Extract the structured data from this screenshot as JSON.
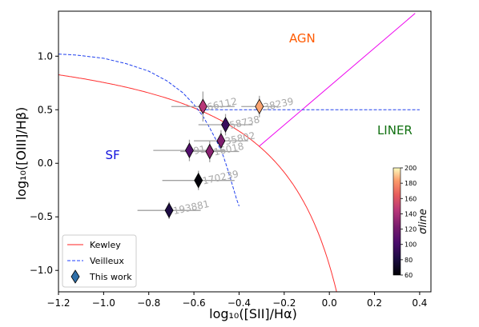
{
  "chart_data": {
    "type": "scatter",
    "xlabel": "log₁₀([SII]/Hα)",
    "ylabel": "log₁₀([OIII]/Hβ)",
    "xlim": [
      -1.2,
      0.45
    ],
    "ylim": [
      -1.2,
      1.42
    ],
    "xticks": [
      "−1.2",
      "−1.0",
      "−0.8",
      "−0.6",
      "−0.4",
      "−0.2",
      "0.0",
      "0.2",
      "0.4"
    ],
    "xtick_values": [
      -1.2,
      -1.0,
      -0.8,
      -0.6,
      -0.4,
      -0.2,
      0.0,
      0.2,
      0.4
    ],
    "yticks": [
      "−1.0",
      "−0.5",
      "0.0",
      "0.5",
      "1.0"
    ],
    "ytick_values": [
      -1.0,
      -0.5,
      0.0,
      0.5,
      1.0
    ],
    "grid": false,
    "legend_position": "bottom-left",
    "legend": [
      {
        "label": "Kewley",
        "color": "#ff2020",
        "style": "solid"
      },
      {
        "label": "Veilleux",
        "color": "#1f3fff",
        "style": "dashed"
      },
      {
        "label": "This work",
        "marker": "diamond",
        "color": "#2f6fa8"
      }
    ],
    "regions": [
      {
        "label": "AGN",
        "x": -0.12,
        "y": 1.13,
        "color": "#ff5a00"
      },
      {
        "label": "SF",
        "x": -0.96,
        "y": 0.04,
        "color": "#1010dd"
      },
      {
        "label": "LINER",
        "x": 0.29,
        "y": 0.27,
        "color": "#107010"
      }
    ],
    "lines": {
      "kewley": {
        "color": "#ff3030",
        "formula": "0.72/(x-0.32)+1.30",
        "x_range": [
          -1.2,
          0.035
        ]
      },
      "veilleux": {
        "color": "#2040ee",
        "x": [
          -1.2,
          -1.12,
          -1.0,
          -0.9,
          -0.8,
          -0.72,
          -0.65,
          -0.6,
          -0.56,
          -0.53,
          -0.5,
          -0.47,
          -0.45,
          -0.43,
          -0.41,
          -0.4
        ],
        "y": [
          1.02,
          1.01,
          0.98,
          0.93,
          0.86,
          0.77,
          0.66,
          0.55,
          0.44,
          0.33,
          0.21,
          0.07,
          -0.06,
          -0.2,
          -0.34,
          -0.4
        ]
      },
      "liner_boundary": {
        "color": "#ee00ee",
        "x": [
          -0.31,
          0.38
        ],
        "y": [
          0.16,
          1.4
        ]
      },
      "liner_veilleux": {
        "color": "#2040ee",
        "x": [
          -0.57,
          0.4
        ],
        "y": [
          0.5,
          0.5
        ]
      }
    },
    "colorbar": {
      "label": "σline",
      "min": 60,
      "max": 200,
      "ticks": [
        "60",
        "80",
        "100",
        "120",
        "140",
        "160",
        "180",
        "200"
      ],
      "tick_values": [
        60,
        80,
        100,
        120,
        140,
        160,
        180,
        200
      ]
    },
    "points": [
      {
        "label": "66112",
        "x": -0.56,
        "y": 0.53,
        "sigma": 145,
        "xerr": 0.14,
        "yerr": 0.14
      },
      {
        "label": "38239",
        "x": -0.31,
        "y": 0.53,
        "sigma": 185,
        "xerr": 0.08,
        "yerr": 0.1
      },
      {
        "label": "58738",
        "x": -0.46,
        "y": 0.36,
        "sigma": 95,
        "xerr": 0.12,
        "yerr": 0.1
      },
      {
        "label": "35802",
        "x": -0.48,
        "y": 0.21,
        "sigma": 125,
        "xerr": 0.12,
        "yerr": 0.1
      },
      {
        "label": "16018",
        "x": -0.53,
        "y": 0.11,
        "sigma": 128,
        "xerr": 0.13,
        "yerr": 0.1
      },
      {
        "label": "91",
        "x": -0.62,
        "y": 0.12,
        "sigma": 105,
        "xerr": 0.16,
        "yerr": 0.1
      },
      {
        "label": "170239",
        "x": -0.58,
        "y": -0.16,
        "sigma": 62,
        "xerr": 0.16,
        "yerr": 0.09
      },
      {
        "label": "193881",
        "x": -0.71,
        "y": -0.44,
        "sigma": 82,
        "xerr": 0.14,
        "yerr": 0.08
      }
    ]
  }
}
